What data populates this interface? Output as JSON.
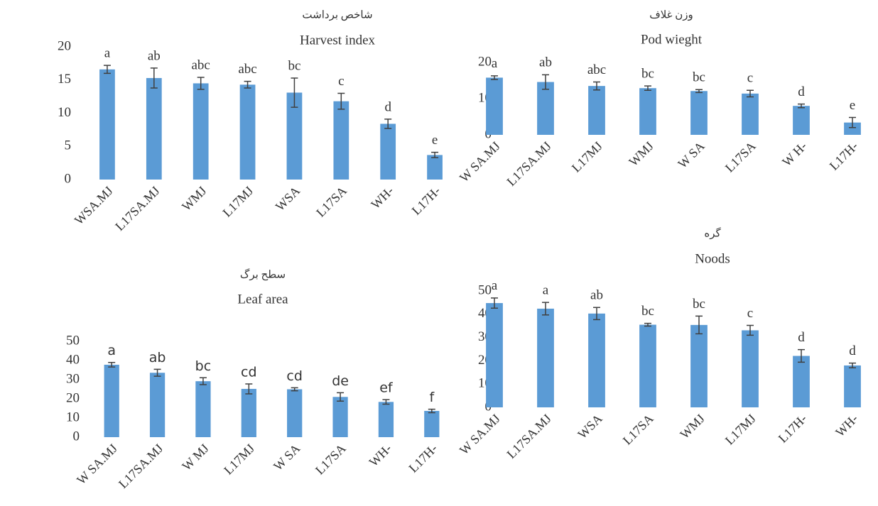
{
  "chart_data": [
    {
      "type": "bar",
      "title": "شاخص برداشت",
      "subtitle": "Harvest index",
      "categories": [
        "WSA.MJ",
        "L17SA.MJ",
        "WMJ",
        "L17MJ",
        "WSA",
        "L17SA",
        "WH-",
        "L17H-"
      ],
      "values": [
        16.6,
        15.3,
        14.5,
        14.3,
        13.1,
        11.8,
        8.4,
        3.7
      ],
      "errors": [
        0.6,
        1.5,
        0.9,
        0.5,
        2.2,
        1.2,
        0.7,
        0.4
      ],
      "annotations": [
        "a",
        "ab",
        "abc",
        "abc",
        "bc",
        "c",
        "d",
        "e"
      ],
      "color": "#5b9bd5",
      "ylim": [
        0,
        20
      ],
      "yticks": [
        0,
        5,
        10,
        15,
        20
      ]
    },
    {
      "type": "bar",
      "title": "وزن غلاف",
      "subtitle": "Pod wieght",
      "categories": [
        "W SA.MJ",
        "L17SA.MJ",
        "L17MJ",
        "WMJ",
        "W SA",
        "L17SA",
        "W H-",
        "L17H-"
      ],
      "values": [
        15.8,
        14.6,
        13.5,
        12.9,
        12.1,
        11.4,
        8.0,
        3.4
      ],
      "errors": [
        0.5,
        2.0,
        1.1,
        0.6,
        0.4,
        0.9,
        0.5,
        1.4
      ],
      "annotations": [
        "a",
        "ab",
        "abc",
        "bc",
        "bc",
        "c",
        "d",
        "e"
      ],
      "color": "#5b9bd5",
      "ylim": [
        0,
        20
      ],
      "yticks": [
        0,
        10,
        20
      ]
    },
    {
      "type": "bar",
      "title": "سطح برگ",
      "subtitle": "Leaf area",
      "categories": [
        "W SA.MJ",
        "L17SA.MJ",
        "W MJ",
        "L17MJ",
        "W SA",
        "L17SA",
        "WH-",
        "L17H-"
      ],
      "values": [
        37.8,
        33.6,
        29.2,
        25.2,
        25.0,
        21.0,
        18.4,
        13.7
      ],
      "errors": [
        1.2,
        1.8,
        1.8,
        2.6,
        0.8,
        2.2,
        1.2,
        0.9
      ],
      "annotations": [
        "a",
        "ab",
        "bc",
        "cd",
        "cd",
        "de",
        "ef",
        "f"
      ],
      "color": "#5b9bd5",
      "ylim": [
        0,
        50
      ],
      "yticks": [
        0,
        10,
        20,
        30,
        40,
        50
      ]
    },
    {
      "type": "bar",
      "title": "گره",
      "subtitle": "Noods",
      "categories": [
        "W SA.MJ",
        "L17SA.MJ",
        "WSA",
        "L17SA",
        "WMJ",
        "L17MJ",
        "L17H-",
        "WH-"
      ],
      "values": [
        44.8,
        42.4,
        40.3,
        35.5,
        35.4,
        33.1,
        22.1,
        18.0
      ],
      "errors": [
        2.2,
        2.7,
        2.6,
        0.6,
        3.8,
        2.1,
        2.7,
        1.0
      ],
      "annotations": [
        "a",
        "a",
        "ab",
        "bc",
        "bc",
        "c",
        "d",
        "d"
      ],
      "color": "#5b9bd5",
      "ylim": [
        0,
        50
      ],
      "yticks": [
        0,
        10,
        20,
        30,
        40,
        50
      ]
    }
  ]
}
